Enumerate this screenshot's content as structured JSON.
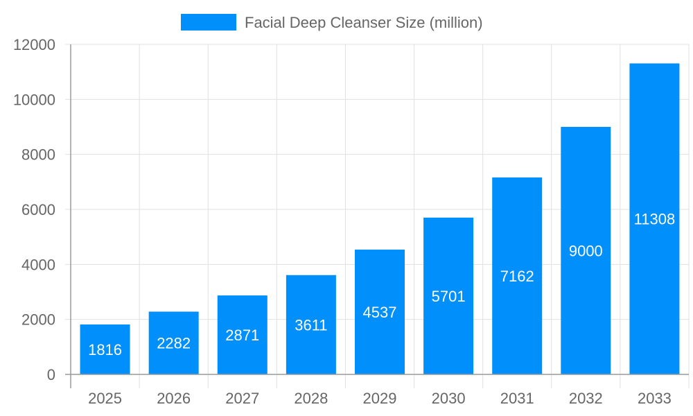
{
  "chart_data": {
    "type": "bar",
    "categories": [
      "2025",
      "2026",
      "2027",
      "2028",
      "2029",
      "2030",
      "2031",
      "2032",
      "2033"
    ],
    "series": [
      {
        "name": "Facial Deep Cleanser Size (million)",
        "values": [
          1816,
          2282,
          2871,
          3611,
          4537,
          5701,
          7162,
          9000,
          11308
        ],
        "color": "#008ffb"
      }
    ],
    "ylim": [
      0,
      12000
    ],
    "yticks": [
      0,
      2000,
      4000,
      6000,
      8000,
      10000,
      12000
    ],
    "grid": true,
    "legend_position": "top",
    "data_labels": true
  }
}
